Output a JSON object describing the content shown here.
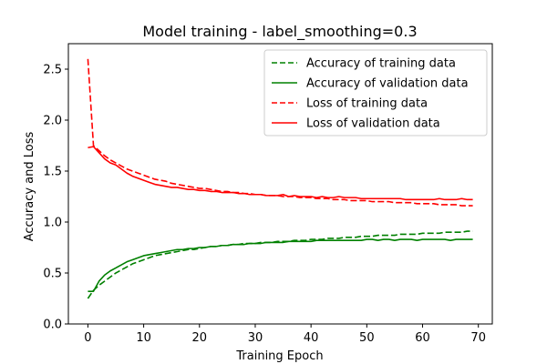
{
  "chart_data": {
    "type": "line",
    "title": "Model training - label_smoothing=0.3",
    "xlabel": "Training Epoch",
    "ylabel": "Accuracy and Loss",
    "xlim": [
      -3.5,
      72.5
    ],
    "ylim": [
      0.0,
      2.75
    ],
    "xticks": [
      0,
      10,
      20,
      30,
      40,
      50,
      60,
      70
    ],
    "xtick_labels": [
      "0",
      "10",
      "20",
      "30",
      "40",
      "50",
      "60",
      "70"
    ],
    "yticks": [
      0.0,
      0.5,
      1.0,
      1.5,
      2.0,
      2.5
    ],
    "ytick_labels": [
      "0.0",
      "0.5",
      "1.0",
      "1.5",
      "2.0",
      "2.5"
    ],
    "grid": false,
    "legend_position": "top-right",
    "x": [
      0,
      1,
      2,
      3,
      4,
      5,
      6,
      7,
      8,
      9,
      10,
      11,
      12,
      13,
      14,
      15,
      16,
      17,
      18,
      19,
      20,
      21,
      22,
      23,
      24,
      25,
      26,
      27,
      28,
      29,
      30,
      31,
      32,
      33,
      34,
      35,
      36,
      37,
      38,
      39,
      40,
      41,
      42,
      43,
      44,
      45,
      46,
      47,
      48,
      49,
      50,
      51,
      52,
      53,
      54,
      55,
      56,
      57,
      58,
      59,
      60,
      61,
      62,
      63,
      64,
      65,
      66,
      67,
      68,
      69
    ],
    "series": [
      {
        "name": "Accuracy of training data",
        "color": "#008000",
        "style": "dashed",
        "values": [
          0.25,
          0.33,
          0.38,
          0.42,
          0.46,
          0.5,
          0.53,
          0.56,
          0.59,
          0.61,
          0.63,
          0.65,
          0.67,
          0.68,
          0.69,
          0.7,
          0.71,
          0.72,
          0.73,
          0.73,
          0.74,
          0.75,
          0.76,
          0.76,
          0.77,
          0.77,
          0.78,
          0.78,
          0.79,
          0.79,
          0.79,
          0.8,
          0.8,
          0.8,
          0.81,
          0.81,
          0.81,
          0.82,
          0.82,
          0.82,
          0.83,
          0.83,
          0.83,
          0.84,
          0.84,
          0.84,
          0.85,
          0.85,
          0.85,
          0.86,
          0.86,
          0.86,
          0.87,
          0.87,
          0.87,
          0.87,
          0.88,
          0.88,
          0.88,
          0.88,
          0.89,
          0.89,
          0.89,
          0.89,
          0.9,
          0.9,
          0.9,
          0.9,
          0.91,
          0.91
        ]
      },
      {
        "name": "Accuracy of validation data",
        "color": "#008000",
        "style": "solid",
        "values": [
          0.32,
          0.32,
          0.42,
          0.48,
          0.52,
          0.55,
          0.58,
          0.61,
          0.63,
          0.65,
          0.67,
          0.68,
          0.69,
          0.7,
          0.71,
          0.72,
          0.73,
          0.73,
          0.74,
          0.74,
          0.75,
          0.75,
          0.76,
          0.76,
          0.77,
          0.77,
          0.78,
          0.78,
          0.78,
          0.79,
          0.79,
          0.79,
          0.8,
          0.8,
          0.8,
          0.8,
          0.81,
          0.81,
          0.81,
          0.81,
          0.81,
          0.82,
          0.82,
          0.82,
          0.82,
          0.82,
          0.82,
          0.82,
          0.82,
          0.82,
          0.83,
          0.83,
          0.82,
          0.83,
          0.83,
          0.82,
          0.83,
          0.83,
          0.83,
          0.82,
          0.83,
          0.83,
          0.83,
          0.83,
          0.83,
          0.82,
          0.83,
          0.83,
          0.83,
          0.83
        ]
      },
      {
        "name": "Loss of training data",
        "color": "#ff0000",
        "style": "dashed",
        "values": [
          2.6,
          1.75,
          1.7,
          1.65,
          1.61,
          1.58,
          1.55,
          1.52,
          1.5,
          1.48,
          1.46,
          1.44,
          1.42,
          1.41,
          1.4,
          1.38,
          1.37,
          1.36,
          1.35,
          1.34,
          1.33,
          1.33,
          1.32,
          1.31,
          1.3,
          1.3,
          1.29,
          1.29,
          1.28,
          1.28,
          1.27,
          1.27,
          1.26,
          1.26,
          1.26,
          1.25,
          1.25,
          1.25,
          1.24,
          1.24,
          1.24,
          1.23,
          1.23,
          1.23,
          1.22,
          1.22,
          1.22,
          1.21,
          1.21,
          1.21,
          1.21,
          1.2,
          1.2,
          1.2,
          1.2,
          1.19,
          1.19,
          1.19,
          1.19,
          1.18,
          1.18,
          1.18,
          1.18,
          1.17,
          1.17,
          1.17,
          1.17,
          1.16,
          1.16,
          1.16
        ]
      },
      {
        "name": "Loss of validation data",
        "color": "#ff0000",
        "style": "solid",
        "values": [
          1.73,
          1.74,
          1.68,
          1.62,
          1.58,
          1.56,
          1.52,
          1.48,
          1.45,
          1.43,
          1.41,
          1.39,
          1.37,
          1.36,
          1.35,
          1.34,
          1.34,
          1.33,
          1.32,
          1.32,
          1.31,
          1.31,
          1.3,
          1.3,
          1.29,
          1.29,
          1.29,
          1.28,
          1.28,
          1.27,
          1.27,
          1.27,
          1.26,
          1.26,
          1.26,
          1.27,
          1.25,
          1.26,
          1.25,
          1.25,
          1.25,
          1.24,
          1.25,
          1.24,
          1.24,
          1.25,
          1.24,
          1.24,
          1.24,
          1.23,
          1.23,
          1.23,
          1.23,
          1.23,
          1.23,
          1.23,
          1.23,
          1.22,
          1.22,
          1.22,
          1.22,
          1.22,
          1.22,
          1.23,
          1.22,
          1.22,
          1.22,
          1.23,
          1.22,
          1.22
        ]
      }
    ]
  }
}
